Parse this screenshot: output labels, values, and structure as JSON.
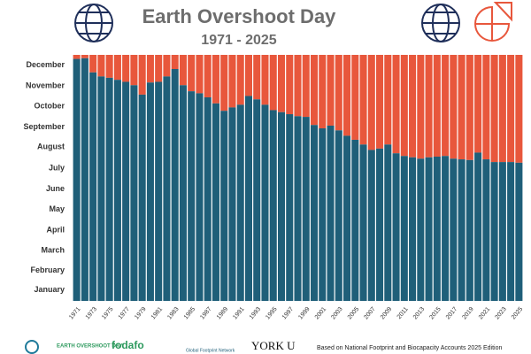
{
  "chart_data": {
    "type": "bar",
    "title": "Earth Overshoot Day",
    "subtitle": "1971 - 2025",
    "categories": [
      "1971",
      null,
      "1973",
      null,
      "1975",
      null,
      "1977",
      null,
      "1979",
      null,
      "1981",
      null,
      "1983",
      null,
      "1985",
      null,
      "1987",
      null,
      "1989",
      null,
      "1991",
      null,
      "1993",
      null,
      "1995",
      null,
      "1997",
      null,
      "1999",
      null,
      "2001",
      null,
      "2003",
      null,
      "2005",
      null,
      "2007",
      null,
      "2009",
      null,
      "2011",
      null,
      "2013",
      null,
      "2015",
      null,
      "2017",
      null,
      "2019",
      null,
      "2021",
      null,
      "2023",
      null,
      "2025"
    ],
    "values": [
      359,
      360,
      339,
      333,
      331,
      328,
      325,
      320,
      306,
      324,
      325,
      333,
      344,
      320,
      311,
      308,
      302,
      293,
      282,
      287,
      291,
      304,
      299,
      291,
      283,
      280,
      277,
      274,
      273,
      261,
      256,
      260,
      253,
      245,
      239,
      232,
      224,
      226,
      232,
      219,
      215,
      213,
      211,
      213,
      214,
      215,
      211,
      210,
      209,
      220,
      210,
      206,
      206,
      206,
      205
    ],
    "color": "#1f5f79",
    "remainder_color": "#e8573c",
    "ylim": [
      0,
      365
    ],
    "yticks": [
      {
        "value": 16,
        "label": "January"
      },
      {
        "value": 45,
        "label": "February"
      },
      {
        "value": 75,
        "label": "March"
      },
      {
        "value": 105,
        "label": "April"
      },
      {
        "value": 136,
        "label": "May"
      },
      {
        "value": 166,
        "label": "June"
      },
      {
        "value": 197,
        "label": "July"
      },
      {
        "value": 228,
        "label": "August"
      },
      {
        "value": 258,
        "label": "September"
      },
      {
        "value": 289,
        "label": "October"
      },
      {
        "value": 319,
        "label": "November"
      },
      {
        "value": 350,
        "label": "December"
      }
    ],
    "grid": false
  },
  "footer": {
    "logos": [
      "EARTH OVERSHOOT DAY",
      "fodafo",
      "Global Footprint Network",
      "YORK U"
    ],
    "source": "Based on National Footprint and Biocapacity Accounts 2025 Edition"
  }
}
